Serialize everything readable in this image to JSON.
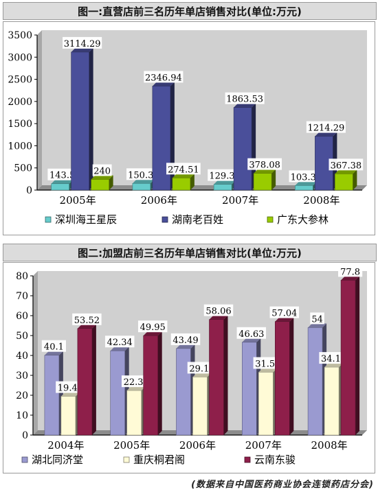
{
  "chart_data": [
    {
      "type": "bar",
      "title": "图一:直营店前三名历年单店销售对比(单位:万元)",
      "categories": [
        "2005年",
        "2006年",
        "2007年",
        "2008年"
      ],
      "series": [
        {
          "name": "深圳海王星辰",
          "values": [
            143.5,
            150.32,
            129.37,
            103.36
          ],
          "color": "#66cccc"
        },
        {
          "name": "湖南老百姓",
          "values": [
            3114.29,
            2346.94,
            1863.53,
            1214.29
          ],
          "color": "#4a4f9a"
        },
        {
          "name": "广东大参林",
          "values": [
            240,
            274.51,
            378.08,
            367.38
          ],
          "color": "#99cc00"
        }
      ],
      "data_labels": [
        [
          "143.5",
          "150.32",
          "129.37",
          "103.36"
        ],
        [
          "3114.29",
          "2346.94",
          "1863.53",
          "1214.29"
        ],
        [
          "240",
          "274.51",
          "378.08",
          "367.38"
        ]
      ],
      "ylim": [
        0,
        3500
      ],
      "yticks": [
        0,
        500,
        1000,
        1500,
        2000,
        2500,
        3000,
        3500
      ],
      "grid": false,
      "legend": "bottom"
    },
    {
      "type": "bar",
      "title": "图二:加盟店前三名历年单店销售对比(单位:万元)",
      "categories": [
        "2004年",
        "2005年",
        "2006年",
        "2007年",
        "2008年"
      ],
      "series": [
        {
          "name": "湖北同济堂",
          "values": [
            40.1,
            42.34,
            43.49,
            46.63,
            54
          ],
          "color": "#9a9ad0"
        },
        {
          "name": "重庆桐君阁",
          "values": [
            19.45,
            22.37,
            29.17,
            31.56,
            34.11
          ],
          "color": "#fffbd6"
        },
        {
          "name": "云南东骏",
          "values": [
            53.52,
            49.95,
            58.06,
            57.04,
            77.8
          ],
          "color": "#8e1f4a"
        }
      ],
      "data_labels": [
        [
          "40.1",
          "42.34",
          "43.49",
          "46.63",
          "54"
        ],
        [
          "19.45",
          "22.37",
          "29.17",
          "31.56",
          "34.11"
        ],
        [
          "53.52",
          "49.95",
          "58.06",
          "57.04",
          "77.8"
        ]
      ],
      "ylim": [
        0,
        80
      ],
      "yticks": [
        0,
        10,
        20,
        30,
        40,
        50,
        60,
        70,
        80
      ],
      "grid": false,
      "legend": "bottom"
    }
  ],
  "source_note": "(数据来自中国医药商业协会连锁药店分会)"
}
